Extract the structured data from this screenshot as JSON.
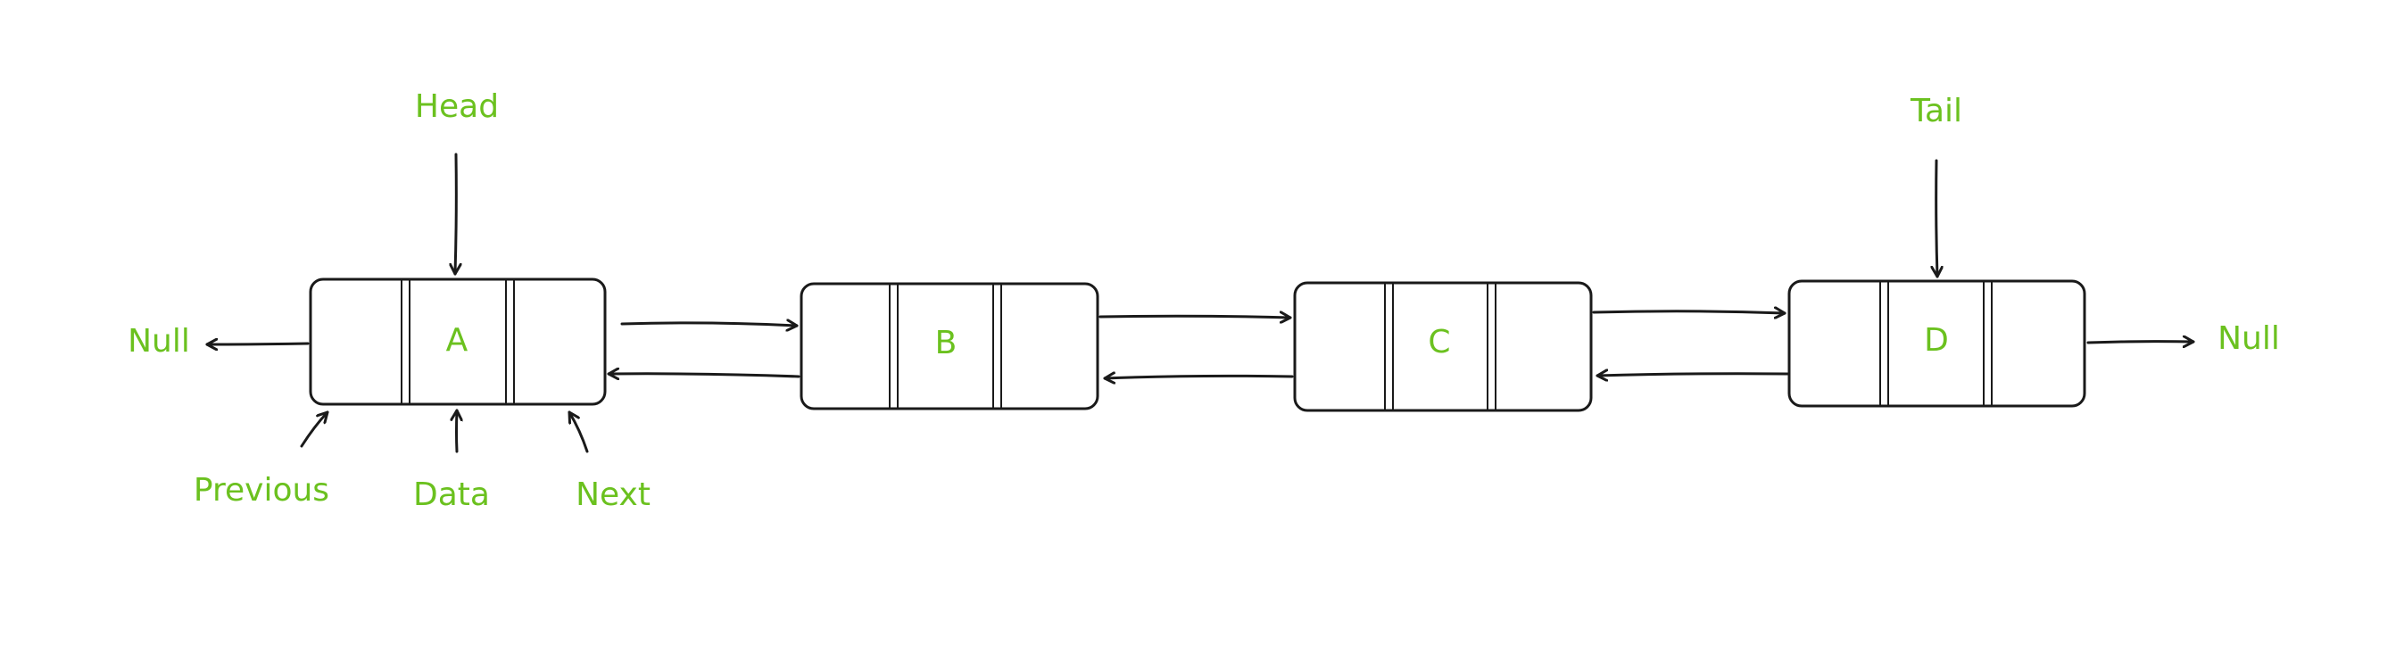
{
  "colors": {
    "label": "#6bc11f",
    "line": "#1a1a1a",
    "background": "#ffffff"
  },
  "nodes": [
    {
      "name": "A",
      "label": "A"
    },
    {
      "name": "B",
      "label": "B"
    },
    {
      "name": "C",
      "label": "C"
    },
    {
      "name": "D",
      "label": "D"
    }
  ],
  "pointers": {
    "head": "Head",
    "tail": "Tail",
    "null_left": "Null",
    "null_right": "Null"
  },
  "node_parts": {
    "previous": "Previous",
    "data": "Data",
    "next": "Next"
  }
}
